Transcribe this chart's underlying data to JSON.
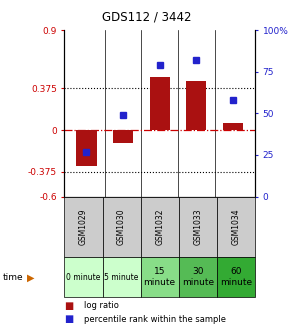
{
  "title": "GDS112 / 3442",
  "samples": [
    "GSM1029",
    "GSM1030",
    "GSM1032",
    "GSM1033",
    "GSM1034"
  ],
  "time_labels": [
    "0 minute",
    "5 minute",
    "15\nminute",
    "30\nminute",
    "60\nminute"
  ],
  "time_colors": [
    "#ccffcc",
    "#ccffcc",
    "#88dd88",
    "#55bb55",
    "#33aa33"
  ],
  "log_ratio": [
    -0.32,
    -0.12,
    0.48,
    0.44,
    0.06
  ],
  "percentile_rank": [
    27,
    49,
    79,
    82,
    58
  ],
  "ylim_left": [
    -0.6,
    0.9
  ],
  "ylim_right": [
    0,
    100
  ],
  "yticks_left": [
    -0.6,
    -0.375,
    0,
    0.375,
    0.9
  ],
  "ytick_labels_left": [
    "-0.6",
    "-0.375",
    "0",
    "0.375",
    "0.9"
  ],
  "yticks_right": [
    0,
    25,
    50,
    75,
    100
  ],
  "ytick_labels_right": [
    "0",
    "25",
    "50",
    "75",
    "100%"
  ],
  "hlines": [
    0.375,
    -0.375
  ],
  "bar_color": "#aa1111",
  "dot_color": "#2222cc",
  "zero_line_color": "#cc0000",
  "background_color": "#ffffff",
  "plot_bg_color": "#ffffff",
  "sample_header_color": "#cccccc",
  "legend_log_color": "#aa1111",
  "legend_pct_color": "#2222cc",
  "bar_width": 0.55,
  "dot_size": 4
}
